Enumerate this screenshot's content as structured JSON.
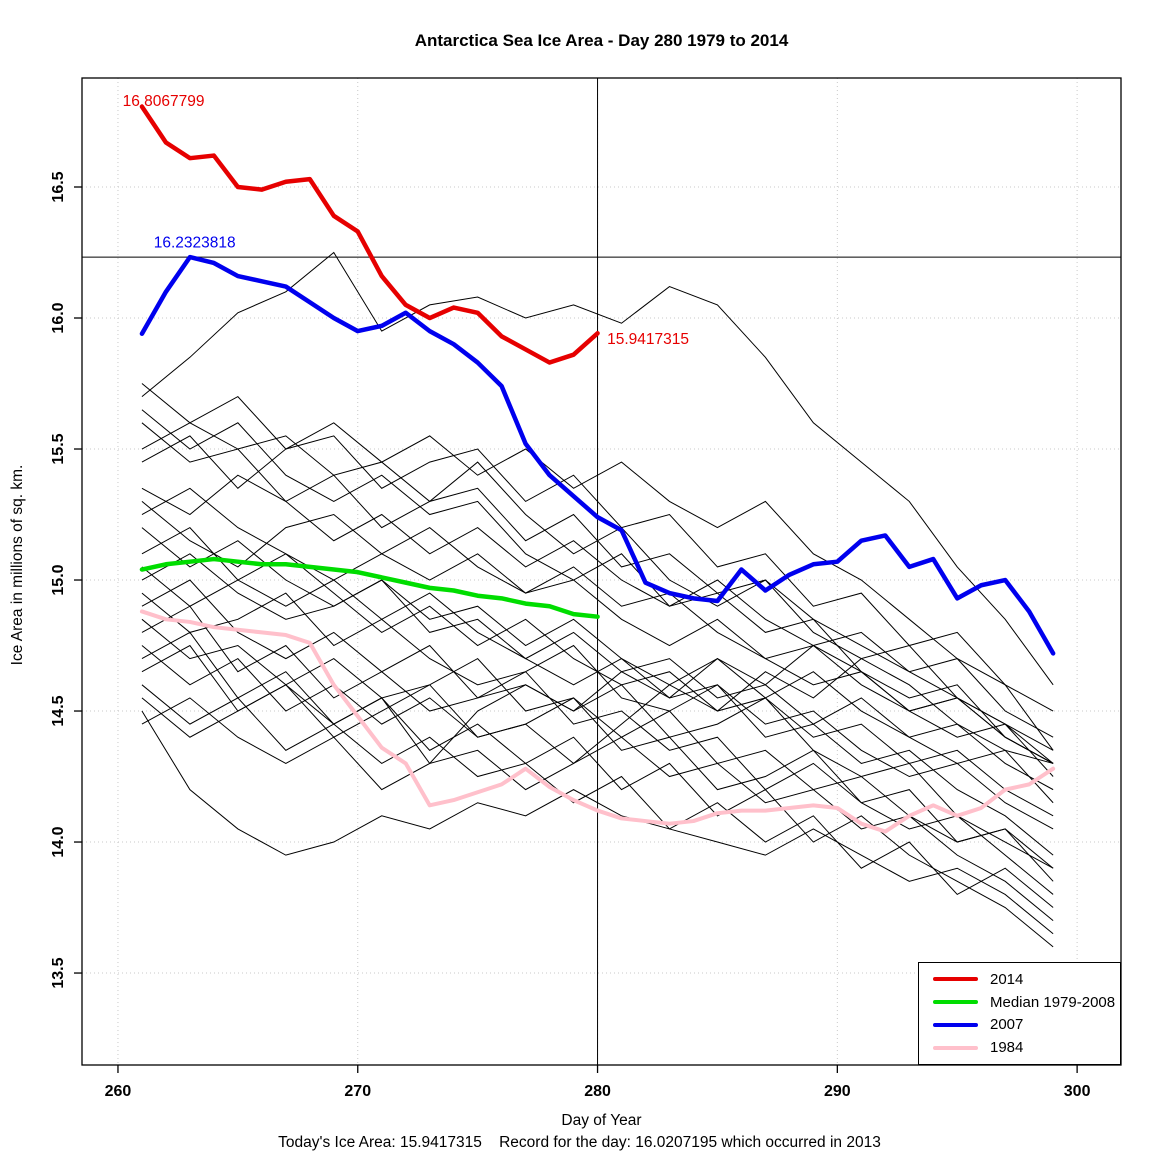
{
  "legend": {
    "items": [
      {
        "label": "2014",
        "color": "#e60000"
      },
      {
        "label": "Median 1979-2008",
        "color": "#00dd00"
      },
      {
        "label": "2007",
        "color": "#0000ee"
      },
      {
        "label": "1984",
        "color": "#ffc0cb"
      }
    ]
  },
  "chart_data": {
    "type": "line",
    "title": "Antarctica Sea Ice Area - Day 280 1979 to 2014",
    "xlabel": "Day of Year",
    "ylabel": "Ice Area in millions of sq. km.",
    "caption": "Today's Ice Area: 15.9417315    Record for the day: 16.0207195 which occurred in 2013",
    "todays_ice_area": 15.9417315,
    "record_for_day": 16.0207195,
    "record_year": 2013,
    "xlim": [
      258.5,
      301.83
    ],
    "ylim": [
      13.149,
      16.916
    ],
    "x_ticks": [
      260,
      270,
      280,
      290,
      300
    ],
    "y_ticks": [
      13.5,
      14.0,
      14.5,
      15.0,
      15.5,
      16.0,
      16.5
    ],
    "grid": true,
    "reference_lines": {
      "vertical_x": 280,
      "horizontal_y": 16.2323818
    },
    "annotations": [
      {
        "text": "16.8067799",
        "x": 261.9,
        "y": 16.81,
        "color": "#e60000",
        "anchor": "middle"
      },
      {
        "text": "16.2323818",
        "x": 263.2,
        "y": 16.27,
        "color": "#0000ee",
        "anchor": "middle"
      },
      {
        "text": "15.9417315",
        "x": 280.4,
        "y": 15.9,
        "color": "#e60000",
        "anchor": "start"
      }
    ],
    "series": [
      {
        "name": "1984",
        "color": "#ffc0cb",
        "width": 4,
        "x_start": 261,
        "values": [
          14.88,
          14.85,
          14.84,
          14.82,
          14.81,
          14.8,
          14.79,
          14.76,
          14.6,
          14.48,
          14.36,
          14.3,
          14.14,
          14.16,
          14.19,
          14.22,
          14.28,
          14.21,
          14.16,
          14.12,
          14.09,
          14.08,
          14.07,
          14.08,
          14.11,
          14.12,
          14.12,
          14.13,
          14.14,
          14.13,
          14.07,
          14.04,
          14.1,
          14.14,
          14.1,
          14.13,
          14.2,
          14.22,
          14.28
        ]
      },
      {
        "name": "median-1979-2008",
        "color": "#00dd00",
        "width": 4.5,
        "x_start": 261,
        "values": [
          15.04,
          15.06,
          15.07,
          15.08,
          15.07,
          15.06,
          15.06,
          15.05,
          15.04,
          15.03,
          15.01,
          14.99,
          14.97,
          14.96,
          14.94,
          14.93,
          14.91,
          14.9,
          14.87,
          14.86
        ]
      },
      {
        "name": "2007",
        "color": "#0000ee",
        "width": 4.5,
        "x_start": 261,
        "values": [
          15.94,
          16.1,
          16.2323818,
          16.21,
          16.16,
          16.14,
          16.12,
          16.06,
          16.0,
          15.95,
          15.97,
          16.02,
          15.95,
          15.9,
          15.83,
          15.74,
          15.52,
          15.4,
          15.32,
          15.24,
          15.19,
          14.99,
          14.95,
          14.93,
          14.92,
          15.04,
          14.96,
          15.02,
          15.06,
          15.07,
          15.15,
          15.17,
          15.05,
          15.08,
          14.93,
          14.98,
          15.0,
          14.88,
          14.72
        ]
      },
      {
        "name": "2014",
        "color": "#e60000",
        "width": 4.5,
        "x_start": 261,
        "values": [
          16.8067799,
          16.67,
          16.61,
          16.62,
          16.5,
          16.49,
          16.52,
          16.53,
          16.39,
          16.33,
          16.16,
          16.05,
          16.0,
          16.04,
          16.02,
          15.93,
          15.88,
          15.83,
          15.86,
          15.9417315
        ]
      }
    ],
    "background_series": {
      "color": "#000000",
      "x_start": 261,
      "x_step": 2,
      "values": [
        [
          15.7,
          15.85,
          16.02,
          16.1,
          16.25,
          15.95,
          16.05,
          16.08,
          16.0,
          16.05,
          15.98,
          16.12,
          16.05,
          15.85,
          15.6,
          15.45,
          15.3,
          15.05,
          14.85,
          14.6
        ],
        [
          15.45,
          15.55,
          15.35,
          15.5,
          15.6,
          15.45,
          15.55,
          15.4,
          15.5,
          15.35,
          15.45,
          15.3,
          15.2,
          15.3,
          15.1,
          15.0,
          14.85,
          14.7,
          14.6,
          14.35
        ],
        [
          15.35,
          15.25,
          15.4,
          15.3,
          15.15,
          15.25,
          15.1,
          15.2,
          15.05,
          15.15,
          15.0,
          14.9,
          15.0,
          14.85,
          14.75,
          14.8,
          14.65,
          14.55,
          14.45,
          14.3
        ],
        [
          15.3,
          15.15,
          15.05,
          15.2,
          15.25,
          15.1,
          15.0,
          15.1,
          14.95,
          15.05,
          14.9,
          14.95,
          14.8,
          14.7,
          14.75,
          14.6,
          14.5,
          14.55,
          14.4,
          14.3
        ],
        [
          15.25,
          15.35,
          15.2,
          15.1,
          15.0,
          15.1,
          15.2,
          15.05,
          14.95,
          15.0,
          14.85,
          14.75,
          14.85,
          14.7,
          14.6,
          14.65,
          14.5,
          14.4,
          14.45,
          14.25
        ],
        [
          15.2,
          15.05,
          15.15,
          15.0,
          14.9,
          15.0,
          14.85,
          14.9,
          14.75,
          14.85,
          14.7,
          14.6,
          14.7,
          14.55,
          14.65,
          14.5,
          14.4,
          14.45,
          14.3,
          14.2
        ],
        [
          15.1,
          15.2,
          15.0,
          14.9,
          15.0,
          14.85,
          14.95,
          14.8,
          14.7,
          14.8,
          14.65,
          14.7,
          14.55,
          14.6,
          14.45,
          14.55,
          14.4,
          14.3,
          14.35,
          14.15
        ],
        [
          15.05,
          14.9,
          15.0,
          15.1,
          14.95,
          14.8,
          14.9,
          14.75,
          14.85,
          14.7,
          14.6,
          14.65,
          14.5,
          14.55,
          14.4,
          14.45,
          14.3,
          14.35,
          14.2,
          14.1
        ],
        [
          15.0,
          15.1,
          14.95,
          14.85,
          14.9,
          15.0,
          14.8,
          14.85,
          14.7,
          14.6,
          14.7,
          14.55,
          14.6,
          14.45,
          14.5,
          14.35,
          14.25,
          14.3,
          14.15,
          14.05
        ],
        [
          14.95,
          14.8,
          14.85,
          14.95,
          14.75,
          14.85,
          14.7,
          14.6,
          14.65,
          14.75,
          14.55,
          14.5,
          14.6,
          14.4,
          14.45,
          14.3,
          14.35,
          14.2,
          14.1,
          13.95
        ],
        [
          14.9,
          15.0,
          14.8,
          14.7,
          14.8,
          14.65,
          14.75,
          14.55,
          14.6,
          14.5,
          14.6,
          14.4,
          14.45,
          14.55,
          14.35,
          14.25,
          14.3,
          14.1,
          14.0,
          13.9
        ],
        [
          14.85,
          14.7,
          14.75,
          14.6,
          14.7,
          14.55,
          14.6,
          14.7,
          14.5,
          14.55,
          14.4,
          14.5,
          14.3,
          14.35,
          14.2,
          14.25,
          14.1,
          14.0,
          14.05,
          13.85
        ],
        [
          14.8,
          14.9,
          14.65,
          14.75,
          14.55,
          14.65,
          14.5,
          14.55,
          14.65,
          14.45,
          14.5,
          14.35,
          14.4,
          14.2,
          14.3,
          14.15,
          14.05,
          14.1,
          13.95,
          13.8
        ],
        [
          14.75,
          14.6,
          14.7,
          14.5,
          14.6,
          14.45,
          14.55,
          14.4,
          14.45,
          14.3,
          14.4,
          14.25,
          14.3,
          14.15,
          14.2,
          14.05,
          14.1,
          13.95,
          13.85,
          13.7
        ],
        [
          14.7,
          14.8,
          14.55,
          14.65,
          14.45,
          14.55,
          14.35,
          14.45,
          14.3,
          14.4,
          14.2,
          14.3,
          14.1,
          14.2,
          14.0,
          14.1,
          13.95,
          13.85,
          13.75,
          13.6
        ],
        [
          14.6,
          14.45,
          14.55,
          14.35,
          14.45,
          14.55,
          14.3,
          14.35,
          14.2,
          14.3,
          14.45,
          14.6,
          14.5,
          14.65,
          14.55,
          14.7,
          14.6,
          14.45,
          14.35,
          14.3
        ],
        [
          14.45,
          14.55,
          14.4,
          14.3,
          14.4,
          14.2,
          14.3,
          14.5,
          14.6,
          14.5,
          14.65,
          14.55,
          14.7,
          14.6,
          14.75,
          14.65,
          14.5,
          14.55,
          14.4,
          14.3
        ],
        [
          14.5,
          14.2,
          14.05,
          13.95,
          14.0,
          14.1,
          14.05,
          14.15,
          14.1,
          14.2,
          14.1,
          14.05,
          14.0,
          13.95,
          14.05,
          13.95,
          13.85,
          13.9,
          13.8,
          13.65
        ],
        [
          15.6,
          15.45,
          15.5,
          15.3,
          15.4,
          15.2,
          15.3,
          15.45,
          15.25,
          15.1,
          15.2,
          15.0,
          14.9,
          15.0,
          14.8,
          14.7,
          14.75,
          14.55,
          14.45,
          14.35
        ],
        [
          15.5,
          15.6,
          15.7,
          15.5,
          15.55,
          15.35,
          15.45,
          15.5,
          15.3,
          15.4,
          15.2,
          15.25,
          15.05,
          15.1,
          14.9,
          14.95,
          14.75,
          14.8,
          14.6,
          14.5
        ],
        [
          15.75,
          15.6,
          15.5,
          15.55,
          15.4,
          15.45,
          15.3,
          15.35,
          15.15,
          15.25,
          15.05,
          15.1,
          14.95,
          15.0,
          14.85,
          14.75,
          14.65,
          14.7,
          14.5,
          14.4
        ],
        [
          15.65,
          15.5,
          15.6,
          15.4,
          15.3,
          15.4,
          15.25,
          15.3,
          15.1,
          15.0,
          15.1,
          14.9,
          14.95,
          14.8,
          14.85,
          14.65,
          14.55,
          14.6,
          14.4,
          14.3
        ],
        [
          14.65,
          14.75,
          14.5,
          14.6,
          14.4,
          14.5,
          14.6,
          14.4,
          14.45,
          14.55,
          14.35,
          14.4,
          14.2,
          14.25,
          14.35,
          14.15,
          14.2,
          14.0,
          14.05,
          13.9
        ],
        [
          14.55,
          14.4,
          14.5,
          14.6,
          14.45,
          14.3,
          14.4,
          14.25,
          14.3,
          14.15,
          14.25,
          14.05,
          14.15,
          14.0,
          14.1,
          13.9,
          14.0,
          13.8,
          13.9,
          13.75
        ]
      ]
    }
  }
}
